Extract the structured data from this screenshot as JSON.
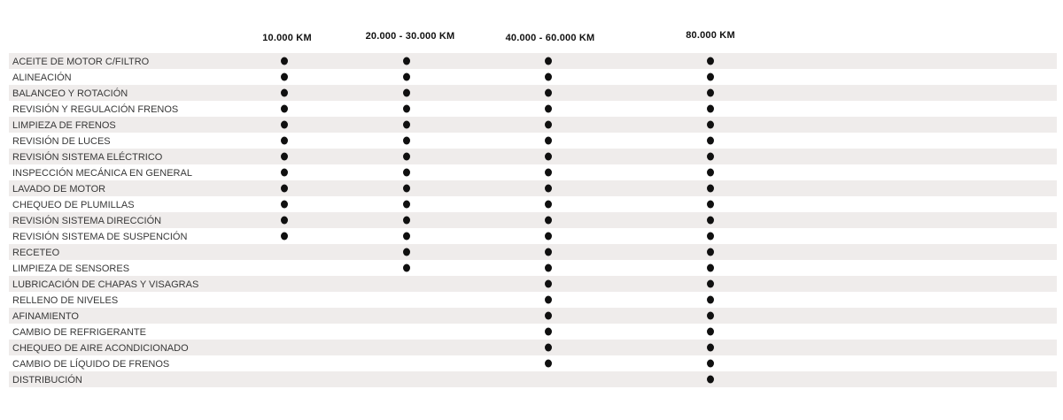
{
  "chart_data": {
    "type": "table",
    "title": "",
    "columns": [
      "10.000 KM",
      "20.000 - 30.000 KM",
      "40.000 - 60.000 KM",
      "80.000 KM"
    ],
    "mark_glyph": "filled-dot",
    "rows": [
      {
        "service": "ACEITE DE MOTOR C/FILTRO",
        "marks": [
          true,
          true,
          true,
          true
        ]
      },
      {
        "service": "ALINEACIÓN",
        "marks": [
          true,
          true,
          true,
          true
        ]
      },
      {
        "service": "BALANCEO Y ROTACIÓN",
        "marks": [
          true,
          true,
          true,
          true
        ]
      },
      {
        "service": "REVISIÓN Y REGULACIÓN FRENOS",
        "marks": [
          true,
          true,
          true,
          true
        ]
      },
      {
        "service": "LIMPIEZA DE FRENOS",
        "marks": [
          true,
          true,
          true,
          true
        ]
      },
      {
        "service": "REVISIÓN DE LUCES",
        "marks": [
          true,
          true,
          true,
          true
        ]
      },
      {
        "service": "REVISIÓN SISTEMA ELÉCTRICO",
        "marks": [
          true,
          true,
          true,
          true
        ]
      },
      {
        "service": "INSPECCIÓN MECÁNICA EN GENERAL",
        "marks": [
          true,
          true,
          true,
          true
        ]
      },
      {
        "service": "LAVADO DE MOTOR",
        "marks": [
          true,
          true,
          true,
          true
        ]
      },
      {
        "service": "CHEQUEO DE PLUMILLAS",
        "marks": [
          true,
          true,
          true,
          true
        ]
      },
      {
        "service": "REVISIÓN SISTEMA DIRECCIÓN",
        "marks": [
          true,
          true,
          true,
          true
        ]
      },
      {
        "service": "REVISIÓN SISTEMA DE SUSPENCIÓN",
        "marks": [
          true,
          true,
          true,
          true
        ]
      },
      {
        "service": "RECETEO",
        "marks": [
          false,
          true,
          true,
          true
        ]
      },
      {
        "service": "LIMPIEZA DE SENSORES",
        "marks": [
          false,
          true,
          true,
          true
        ]
      },
      {
        "service": "LUBRICACIÓN DE CHAPAS Y VISAGRAS",
        "marks": [
          false,
          false,
          true,
          true
        ]
      },
      {
        "service": "RELLENO DE NIVELES",
        "marks": [
          false,
          false,
          true,
          true
        ]
      },
      {
        "service": "AFINAMIENTO",
        "marks": [
          false,
          false,
          true,
          true
        ]
      },
      {
        "service": "CAMBIO DE REFRIGERANTE",
        "marks": [
          false,
          false,
          true,
          true
        ]
      },
      {
        "service": "CHEQUEO DE AIRE ACONDICIONADO",
        "marks": [
          false,
          false,
          true,
          true
        ]
      },
      {
        "service": "CAMBIO DE LÍQUIDO DE FRENOS",
        "marks": [
          false,
          false,
          true,
          true
        ]
      },
      {
        "service": "DISTRIBUCIÓN",
        "marks": [
          false,
          false,
          false,
          true
        ]
      }
    ],
    "layout": {
      "legend": "none",
      "grid": "off",
      "stripe_style": "alternating-rows"
    }
  },
  "styles": {
    "stripe_color": "#efeceb",
    "dot_color": "#101010",
    "label_text_color": "#383838",
    "header_text_color": "#111111",
    "background_color": "#ffffff"
  }
}
